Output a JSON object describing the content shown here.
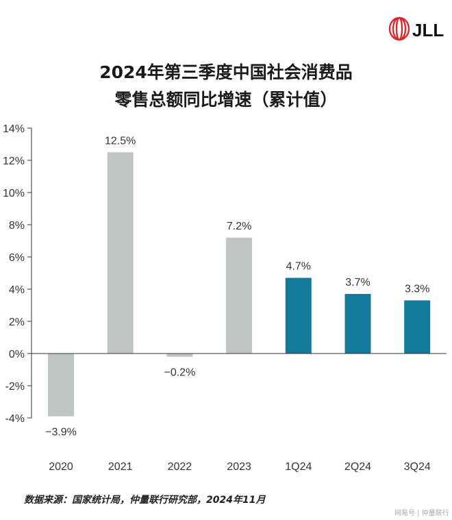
{
  "logo": {
    "text": "JLL",
    "color": "#d7282f"
  },
  "chart_data": {
    "type": "bar",
    "title": "2024年第三季度中国社会消费品零售总额同比增速（累计值）",
    "title_lines": [
      "2024年第三季度中国社会消费品",
      "零售总额同比增速（累计值）"
    ],
    "categories": [
      "2020",
      "2021",
      "2022",
      "2023",
      "1Q24",
      "2Q24",
      "3Q24"
    ],
    "values": [
      -3.9,
      12.5,
      -0.2,
      7.2,
      4.7,
      3.7,
      3.3
    ],
    "data_labels": [
      "−3.9%",
      "12.5%",
      "−0.2%",
      "7.2%",
      "4.7%",
      "3.7%",
      "3.3%"
    ],
    "bar_colors": [
      "#bfc4c5",
      "#bfc4c5",
      "#bfc4c5",
      "#bfc4c5",
      "#15799c",
      "#15799c",
      "#15799c"
    ],
    "ylim": [
      -4,
      14
    ],
    "yticks": [
      -4,
      -2,
      0,
      2,
      4,
      6,
      8,
      10,
      12,
      14
    ],
    "ytick_labels": [
      "-4%",
      "-2%",
      "0%",
      "2%",
      "4%",
      "6%",
      "8%",
      "10%",
      "12%",
      "14%"
    ],
    "xlabel": "",
    "ylabel": "",
    "grid": false,
    "legend": "none"
  },
  "footer": {
    "source": "数据来源：国家统计局，仲量联行研究部，2024年11月",
    "watermark": "网易号 | 仲量联行"
  }
}
